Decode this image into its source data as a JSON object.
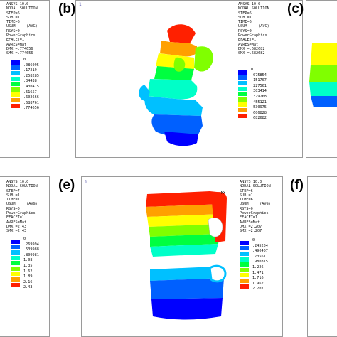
{
  "panels": {
    "a": {
      "info": [
        "ANSYS 10.0",
        "NODAL SOLUTION",
        "STEP=6",
        "SUB =1",
        "TIME=6",
        "USUM     (AVG)",
        "RSYS=0",
        "PowerGraphics",
        "EFACET=1",
        "AVRES=Mat",
        "DMX =.774656",
        "SMX =.774656"
      ],
      "legend": [
        "0",
        ".086095",
        ".17219",
        ".258285",
        ".34438",
        ".430475",
        ".51657",
        ".602666",
        ".688761",
        ".774656"
      ]
    },
    "b": {
      "label": "(b)",
      "corner": "1",
      "info": [
        "ANSYS 10.0",
        "NODAL SOLUTION",
        "STEP=6",
        "SUB =1",
        "TIME=6",
        "USUM     (AVG)",
        "RSYS=0",
        "PowerGraphics",
        "EFACET=1",
        "AVRES=Mat",
        "DMX =.682682",
        "SMX =.682682"
      ],
      "legend": [
        "0",
        ".075854",
        ".151707",
        ".227561",
        ".303414",
        ".379268",
        ".455121",
        ".530975",
        ".606828",
        ".682682"
      ]
    },
    "c": {
      "label": "(c)"
    },
    "d": {
      "info": [
        "ANSYS 10.0",
        "NODAL SOLUTION",
        "STEP=7",
        "SUB =1",
        "TIME=7",
        "USUM     (AVG)",
        "RSYS=0",
        "PowerGraphics",
        "EFACET=1",
        "AVRES=Mat",
        "DMX =2.43",
        "SMX =2.43"
      ],
      "legend": [
        "0",
        ".269994",
        ".539988",
        ".809981",
        "1.08",
        "1.35",
        "1.62",
        "1.89",
        "2.16",
        "2.43"
      ]
    },
    "e": {
      "label": "(e)",
      "corner": "1",
      "mx": "MX",
      "info": [
        "ANSYS 10.0",
        "NODAL SOLUTION",
        "STEP=6",
        "SUB =1",
        "TIME=6",
        "USUM     (AVG)",
        "RSYS=0",
        "PowerGraphics",
        "EFACET=1",
        "AVRES=Mat",
        "DMX =2.207",
        "SMX =2.207"
      ],
      "legend": [
        "0",
        ".245204",
        ".490407",
        ".735611",
        ".980815",
        "1.226",
        "1.471",
        "1.716",
        "1.962",
        "2.207"
      ]
    },
    "f": {
      "label": "(f)"
    }
  },
  "colors": {
    "scale": [
      "#0000ff",
      "#0060ff",
      "#00c0ff",
      "#00ffc8",
      "#00ff40",
      "#80ff00",
      "#ffff00",
      "#ffa000",
      "#ff2000"
    ],
    "frame_border": "#9a9a9a"
  }
}
